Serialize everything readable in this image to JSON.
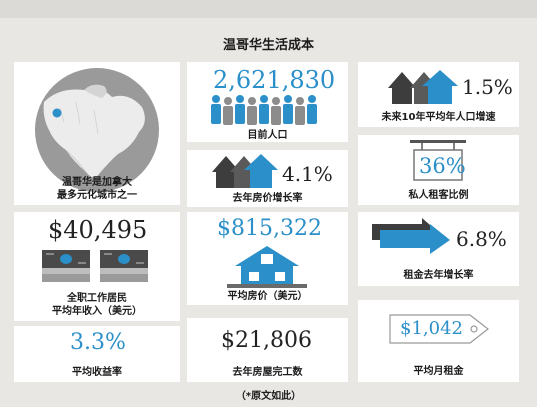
{
  "title": "温哥华生活成本",
  "colors": {
    "accent_blue": "#2b8fc9",
    "dark_gray": "#3d3d3d",
    "panel": "#ffffff",
    "background": "#e9e7e4"
  },
  "panels": {
    "city": {
      "caption": "温哥华是加拿大\n最多元化城市之一",
      "icon": "globe-map-icon"
    },
    "population": {
      "value": "2,621,830",
      "caption": "目前人口",
      "icon": "crowd-icon"
    },
    "pop_growth": {
      "value": "1.5%",
      "caption": "未来10年平均年人口增速",
      "icon": "up-arrows-icon"
    },
    "price_growth": {
      "value": "4.1%",
      "caption": "去年房价增长率",
      "icon": "up-arrows-icon"
    },
    "rent_ratio": {
      "value": "36%",
      "caption": "私人租客比例",
      "icon": "hanging-sign-icon"
    },
    "income": {
      "value": "$40,495",
      "caption": "全职工作居民\n平均年收入（美元）",
      "icon": "banknote-stacks-icon"
    },
    "home_price": {
      "value": "$815,322",
      "caption": "平均房价（美元）",
      "icon": "house-icon"
    },
    "rent_growth": {
      "value": "6.8%",
      "caption": "租金去年增长率",
      "icon": "right-arrows-icon"
    },
    "yield": {
      "value": "3.3%",
      "caption": "平均收益率"
    },
    "completions": {
      "value": "$21,806",
      "caption": "去年房屋完工数"
    },
    "monthly_rent": {
      "value": "$1,042",
      "caption": "平均月租金",
      "icon": "price-tag-icon"
    }
  },
  "footnote": "（*原文如此）"
}
